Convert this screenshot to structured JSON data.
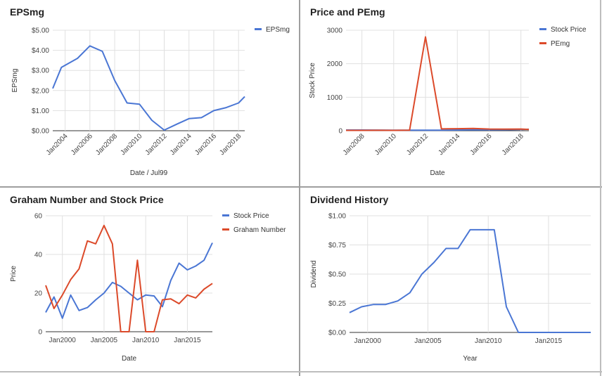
{
  "chart_data": [
    {
      "id": "eps",
      "type": "line",
      "title": "EPSmg",
      "xlabel": "Date / Jul99",
      "ylabel": "EPSmg",
      "x_ticks": [
        "Jan2004",
        "Jan2006",
        "Jan2008",
        "Jan2010",
        "Jan2012",
        "Jan2014",
        "Jan2016",
        "Jan2018"
      ],
      "y_ticks": [
        "$5.00",
        "$4.00",
        "$3.00",
        "$2.00",
        "$1.00",
        "$0.00"
      ],
      "xlim": [
        2003,
        2018.5
      ],
      "ylim": [
        0,
        5
      ],
      "legend_position": "top-right",
      "series": [
        {
          "name": "EPSmg",
          "color": "#4a76d4",
          "x": [
            2003,
            2003.7,
            2005,
            2006,
            2007,
            2008,
            2009,
            2010,
            2011,
            2012,
            2013,
            2014,
            2015,
            2016,
            2017,
            2018,
            2018.5
          ],
          "y": [
            2.1,
            3.15,
            3.6,
            4.22,
            3.95,
            2.5,
            1.38,
            1.32,
            0.52,
            0.03,
            0.32,
            0.6,
            0.65,
            1.0,
            1.15,
            1.38,
            1.7
          ]
        }
      ]
    },
    {
      "id": "price_pe",
      "type": "line",
      "title": "Price and PEmg",
      "xlabel": "Date",
      "ylabel": "Stock Price",
      "x_ticks": [
        "Jan2008",
        "Jan2010",
        "Jan2012",
        "Jan2014",
        "Jan2016",
        "Jan2018"
      ],
      "y_ticks": [
        "3000",
        "2000",
        "1000",
        "0"
      ],
      "xlim": [
        2007,
        2018.5
      ],
      "ylim": [
        0,
        3000
      ],
      "legend_position": "top-right",
      "series": [
        {
          "name": "Stock Price",
          "color": "#4a76d4",
          "x": [
            2007,
            2008,
            2009,
            2010,
            2011,
            2012,
            2013,
            2014,
            2015,
            2016,
            2017,
            2018,
            2018.5
          ],
          "y": [
            20,
            20,
            18,
            15,
            17,
            16,
            17,
            22,
            30,
            28,
            30,
            35,
            45
          ]
        },
        {
          "name": "PEmg",
          "color": "#dc4a2a",
          "x": [
            2007,
            2008,
            2009,
            2010,
            2011,
            2012,
            2013,
            2014,
            2015,
            2016,
            2017,
            2018,
            2018.5
          ],
          "y": [
            10,
            10,
            12,
            10,
            15,
            2800,
            55,
            60,
            70,
            50,
            48,
            50,
            40
          ]
        }
      ]
    },
    {
      "id": "graham",
      "type": "line",
      "title": "Graham Number and Stock Price",
      "xlabel": "Date",
      "ylabel": "Price",
      "x_ticks": [
        "Jan2000",
        "Jan2005",
        "Jan2010",
        "Jan2015"
      ],
      "y_ticks": [
        "60",
        "40",
        "20",
        "0"
      ],
      "xlim": [
        1998,
        2018
      ],
      "ylim": [
        0,
        60
      ],
      "legend_position": "top-right",
      "series": [
        {
          "name": "Stock Price",
          "color": "#4a76d4",
          "x": [
            1998,
            1999,
            2000,
            2001,
            2002,
            2003,
            2004,
            2005,
            2006,
            2007,
            2008,
            2009,
            2010,
            2011,
            2012,
            2013,
            2014,
            2015,
            2016,
            2017,
            2018
          ],
          "y": [
            10,
            18,
            7,
            19,
            11,
            12.5,
            16.5,
            20,
            25.5,
            23.5,
            20,
            16.5,
            19,
            18.5,
            13,
            26.5,
            35.5,
            32,
            34,
            37,
            46
          ]
        },
        {
          "name": "Graham Number",
          "color": "#dc4a2a",
          "x": [
            1998,
            1999,
            2000,
            2001,
            2002,
            2003,
            2004,
            2005,
            2006,
            2007,
            2008,
            2009,
            2010,
            2011,
            2012,
            2013,
            2014,
            2015,
            2016,
            2017,
            2018
          ],
          "y": [
            24,
            12,
            19,
            27,
            32.5,
            47,
            45.5,
            55,
            45.5,
            0,
            0,
            37,
            0,
            0,
            16.5,
            17,
            14.5,
            19,
            17.5,
            22,
            25
          ]
        }
      ]
    },
    {
      "id": "dividend",
      "type": "line",
      "title": "Dividend History",
      "xlabel": "Year",
      "ylabel": "Dividend",
      "x_ticks": [
        "Jan2000",
        "Jan2005",
        "Jan2010",
        "Jan2015"
      ],
      "y_ticks": [
        "$1.00",
        "$0.75",
        "$0.50",
        "$0.25",
        "$0.00"
      ],
      "xlim": [
        1998.5,
        2018.5
      ],
      "ylim": [
        0,
        1
      ],
      "series": [
        {
          "name": "Dividend",
          "color": "#4a76d4",
          "x": [
            1998.5,
            1999.5,
            2000.5,
            2001.5,
            2002.5,
            2003.5,
            2004.5,
            2005.5,
            2006.5,
            2007.5,
            2008.5,
            2009.5,
            2010.5,
            2011.5,
            2012.5,
            2013.5,
            2018.5
          ],
          "y": [
            0.17,
            0.22,
            0.24,
            0.24,
            0.27,
            0.34,
            0.5,
            0.6,
            0.72,
            0.72,
            0.88,
            0.88,
            0.88,
            0.22,
            0.0,
            0.0,
            0.0
          ]
        }
      ]
    }
  ]
}
